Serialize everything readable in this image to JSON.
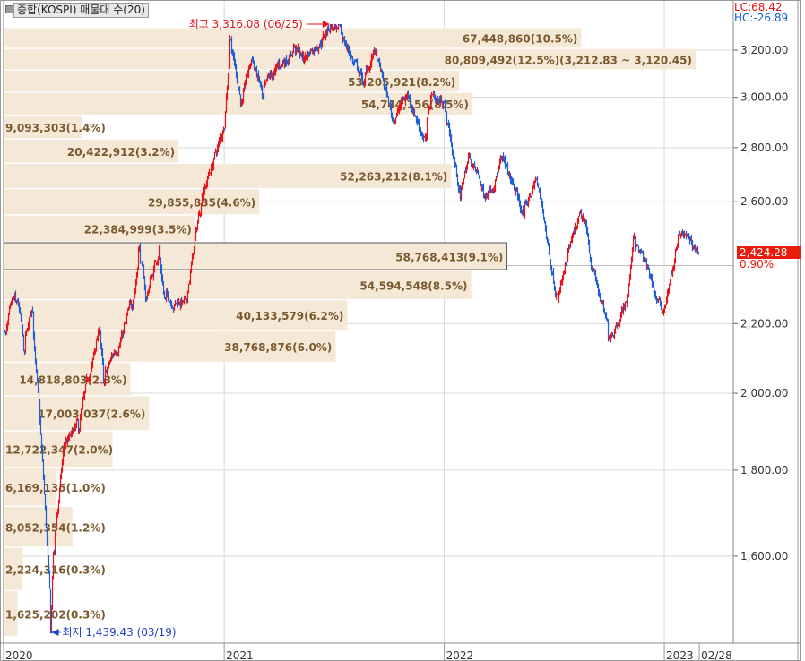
{
  "legend": {
    "label": "종합(KOSPI) 매물대 수(20)"
  },
  "indicators": {
    "lc": "LC:68.42",
    "hc": "HC:-26.89"
  },
  "current": {
    "price": "2,424.28",
    "change": "0.90%"
  },
  "colors": {
    "up": "#e8141c",
    "down": "#1f5fd6",
    "band": "#f5e8d7",
    "band_text": "#7a5a2e",
    "current_bg": "#e81b0c"
  },
  "chart_data": {
    "type": "candlestick-volume-profile",
    "title": "종합(KOSPI) 매물대 수(20)",
    "y_scale": "log",
    "ylim": [
      1439.43,
      3316.08
    ],
    "y_ticks": [
      {
        "value": 3200,
        "label": "3,200.00"
      },
      {
        "value": 3000,
        "label": "3,000.00"
      },
      {
        "value": 2800,
        "label": "2,800.00"
      },
      {
        "value": 2600,
        "label": "2,600.00"
      },
      {
        "value": 2200,
        "label": "2,200.00"
      },
      {
        "value": 2000,
        "label": "2,000.00"
      },
      {
        "value": 1800,
        "label": "1,800.00"
      },
      {
        "value": 1600,
        "label": "1,600.00"
      }
    ],
    "x_ticks": [
      {
        "date": "2020-01-01",
        "label": "2020"
      },
      {
        "date": "2021-01-01",
        "label": "2021"
      },
      {
        "date": "2022-01-01",
        "label": "2022"
      },
      {
        "date": "2023-01-01",
        "label": "2023"
      },
      {
        "date": "2023-02-28",
        "label": "02/28"
      }
    ],
    "grid": true,
    "high": {
      "value": 3316.08,
      "date": "2021-06-25",
      "label": "최고 3,316.08 (06/25)"
    },
    "low": {
      "value": 1439.43,
      "date": "2020-03-19",
      "label": "최저 1,439.43 (03/19)"
    },
    "last_close": 2424.28,
    "price_path": [
      [
        "2020-01-02",
        2175
      ],
      [
        "2020-01-22",
        2267
      ],
      [
        "2020-02-03",
        2120
      ],
      [
        "2020-02-17",
        2240
      ],
      [
        "2020-03-19",
        1439
      ],
      [
        "2020-03-24",
        1610
      ],
      [
        "2020-04-10",
        1860
      ],
      [
        "2020-05-04",
        1900
      ],
      [
        "2020-06-08",
        2180
      ],
      [
        "2020-06-15",
        2030
      ],
      [
        "2020-07-31",
        2250
      ],
      [
        "2020-08-13",
        2440
      ],
      [
        "2020-08-24",
        2280
      ],
      [
        "2020-09-14",
        2440
      ],
      [
        "2020-09-24",
        2280
      ],
      [
        "2020-10-30",
        2270
      ],
      [
        "2020-11-24",
        2620
      ],
      [
        "2020-12-31",
        2873
      ],
      [
        "2021-01-11",
        3250
      ],
      [
        "2021-01-29",
        2980
      ],
      [
        "2021-02-16",
        3160
      ],
      [
        "2021-03-05",
        3000
      ],
      [
        "2021-04-26",
        3220
      ],
      [
        "2021-05-12",
        3160
      ],
      [
        "2021-06-25",
        3316
      ],
      [
        "2021-07-06",
        3300
      ],
      [
        "2021-08-20",
        3060
      ],
      [
        "2021-09-06",
        3200
      ],
      [
        "2021-10-06",
        2910
      ],
      [
        "2021-11-01",
        3010
      ],
      [
        "2021-11-30",
        2840
      ],
      [
        "2021-12-10",
        3010
      ],
      [
        "2021-12-31",
        2977
      ],
      [
        "2022-01-27",
        2614
      ],
      [
        "2022-02-10",
        2770
      ],
      [
        "2022-03-08",
        2620
      ],
      [
        "2022-04-05",
        2760
      ],
      [
        "2022-05-12",
        2550
      ],
      [
        "2022-06-02",
        2680
      ],
      [
        "2022-07-06",
        2290
      ],
      [
        "2022-08-16",
        2540
      ],
      [
        "2022-09-30",
        2155
      ],
      [
        "2022-10-31",
        2290
      ],
      [
        "2022-11-11",
        2480
      ],
      [
        "2022-12-28",
        2230
      ],
      [
        "2023-01-27",
        2485
      ],
      [
        "2023-02-28",
        2424
      ]
    ],
    "volume_profile": [
      {
        "volume": 67448860,
        "label": "67,448,860(10.5%)"
      },
      {
        "volume": 80809492,
        "label": "80,809,492(12.5%)(3,212.83 ~ 3,120.45)"
      },
      {
        "volume": 53205921,
        "label": "53,205,921(8.2%)"
      },
      {
        "volume": 54744156,
        "label": "54,744,156(8.5%)"
      },
      {
        "volume": 9093303,
        "label": "9,093,303(1.4%)"
      },
      {
        "volume": 20422912,
        "label": "20,422,912(3.2%)"
      },
      {
        "volume": 52263212,
        "label": "52,263,212(8.1%)"
      },
      {
        "volume": 29855835,
        "label": "29,855,835(4.6%)"
      },
      {
        "volume": 22384999,
        "label": "22,384,999(3.5%)"
      },
      {
        "volume": 58768413,
        "label": "58,768,413(9.1%)",
        "current": true
      },
      {
        "volume": 54594548,
        "label": "54,594,548(8.5%)"
      },
      {
        "volume": 40133579,
        "label": "40,133,579(6.2%)"
      },
      {
        "volume": 38768876,
        "label": "38,768,876(6.0%)"
      },
      {
        "volume": 14818803,
        "label": "14,818,803(2.3%)"
      },
      {
        "volume": 17003037,
        "label": "17,003,037(2.6%)"
      },
      {
        "volume": 12722347,
        "label": "12,722,347(2.0%)"
      },
      {
        "volume": 6169135,
        "label": "6,169,135(1.0%)"
      },
      {
        "volume": 8052354,
        "label": "8,052,354(1.2%)"
      },
      {
        "volume": 2224316,
        "label": "2,224,316(0.3%)"
      },
      {
        "volume": 1625202,
        "label": "1,625,202(0.3%)"
      }
    ]
  }
}
